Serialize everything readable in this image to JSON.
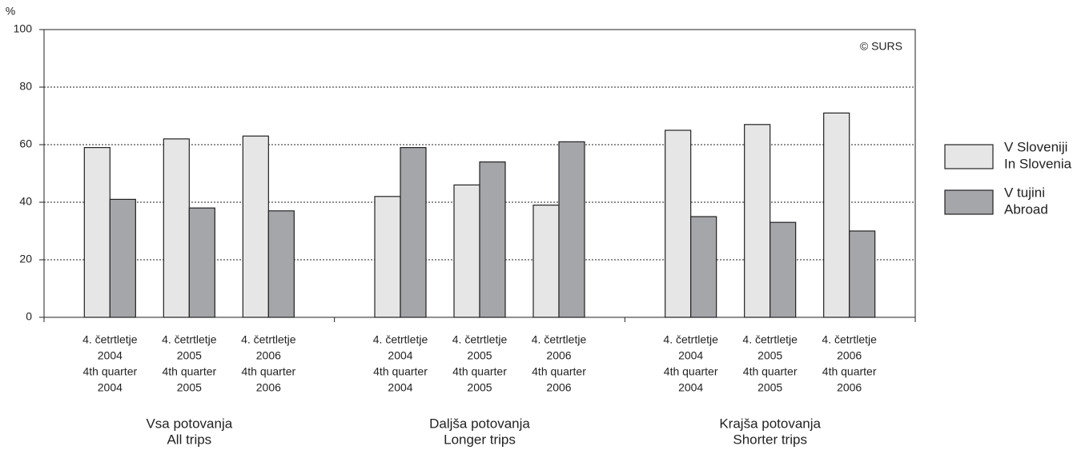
{
  "chart_data": {
    "type": "bar",
    "y_label": "%",
    "annotation": "© SURS",
    "categories": [
      [
        "4. četrtletje",
        "2004",
        "4th quarter",
        "2004"
      ],
      [
        "4. četrtletje",
        "2005",
        "4th quarter",
        "2005"
      ],
      [
        "4. četrtletje",
        "2006",
        "4th quarter",
        "2006"
      ],
      [
        "4. četrtletje",
        "2004",
        "4th quarter",
        "2004"
      ],
      [
        "4. četrtletje",
        "2005",
        "4th quarter",
        "2005"
      ],
      [
        "4. četrtletje",
        "2006",
        "4th quarter",
        "2006"
      ],
      [
        "4. četrtletje",
        "2004",
        "4th quarter",
        "2004"
      ],
      [
        "4. četrtletje",
        "2005",
        "4th quarter",
        "2005"
      ],
      [
        "4. četrtletje",
        "2006",
        "4th quarter",
        "2006"
      ]
    ],
    "groups": [
      [
        "Vsa potovanja",
        "All trips"
      ],
      [
        "Daljša potovanja",
        "Longer trips"
      ],
      [
        "Krajša potovanja",
        "Shorter trips"
      ]
    ],
    "series": [
      {
        "name": [
          "V Sloveniji",
          "In Slovenia"
        ],
        "color": "#e6e6e6",
        "values": [
          59,
          62,
          63,
          42,
          46,
          39,
          65,
          67,
          71
        ]
      },
      {
        "name": [
          "V tujini",
          "Abroad"
        ],
        "color": "#a5a6aa",
        "values": [
          41,
          38,
          37,
          59,
          54,
          61,
          35,
          33,
          30
        ]
      }
    ],
    "ylim": [
      0,
      100
    ],
    "yticks": [
      0,
      20,
      40,
      60,
      80,
      100
    ],
    "grid": true,
    "legend": "right"
  }
}
